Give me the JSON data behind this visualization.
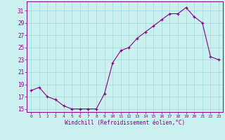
{
  "x": [
    0,
    1,
    2,
    3,
    4,
    5,
    6,
    7,
    8,
    9,
    10,
    11,
    12,
    13,
    14,
    15,
    16,
    17,
    18,
    19,
    20,
    21,
    22,
    23
  ],
  "y": [
    18.0,
    18.5,
    17.0,
    16.5,
    15.5,
    15.0,
    15.0,
    15.0,
    15.0,
    17.5,
    22.5,
    24.5,
    25.0,
    26.5,
    27.5,
    28.5,
    29.5,
    30.5,
    30.5,
    31.5,
    30.0,
    29.0,
    23.5,
    23.0
  ],
  "line_color": "#880088",
  "marker": "+",
  "marker_color": "#880088",
  "bg_color": "#caf0f0",
  "grid_color": "#a0d8d8",
  "xlabel": "Windchill (Refroidissement éolien,°C)",
  "xlabel_color": "#880088",
  "ylabel_ticks": [
    15,
    17,
    19,
    21,
    23,
    25,
    27,
    29,
    31
  ],
  "xtick_labels": [
    "0",
    "1",
    "2",
    "3",
    "4",
    "5",
    "6",
    "7",
    "8",
    "9",
    "10",
    "11",
    "12",
    "13",
    "14",
    "15",
    "16",
    "17",
    "18",
    "19",
    "20",
    "21",
    "22",
    "23"
  ],
  "ylim": [
    14.5,
    32.5
  ],
  "xlim": [
    -0.5,
    23.5
  ],
  "tick_color": "#880088",
  "spine_color": "#880088",
  "font_family": "monospace"
}
